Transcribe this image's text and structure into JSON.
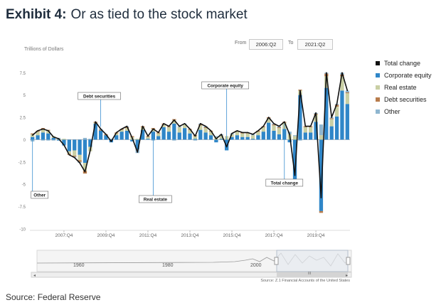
{
  "header": {
    "exhibit": "Exhibit 4:",
    "subtitle": "Or as tied to the stock market"
  },
  "controls": {
    "from_label": "From",
    "from_value": "2006:Q2",
    "to_label": "To",
    "to_value": "2021:Q2"
  },
  "navigator": {
    "labels": [
      "1960",
      "1980",
      "2000"
    ],
    "scroll_label": "III",
    "source": "Source: Z.1 Financial Accounts of the United States"
  },
  "source": "Source: Federal Reserve",
  "colors": {
    "total": "#111111",
    "equity": "#2f86c8",
    "real_estate": "#c9cfa4",
    "debt": "#b87c4c",
    "other": "#8fb6d0",
    "annotation": "#3a8fd0"
  },
  "chart_data": {
    "type": "bar",
    "ylabel": "Trillions of Dollars",
    "ylim": [
      -10,
      8
    ],
    "yticks": [
      "7.5",
      "5",
      "2.5",
      "0",
      "-2.5",
      "-5",
      "-7.5",
      "-10"
    ],
    "ytick_values": [
      7.5,
      5,
      2.5,
      0,
      -2.5,
      -5,
      -7.5,
      -10
    ],
    "xtick_labels": [
      "2007:Q4",
      "2009:Q4",
      "2011:Q4",
      "2013:Q4",
      "2015:Q4",
      "2017:Q4",
      "2019:Q4"
    ],
    "xtick_index": [
      6,
      14,
      22,
      30,
      38,
      46,
      54
    ],
    "categories": [
      "2006:Q2",
      "2006:Q3",
      "2006:Q4",
      "2007:Q1",
      "2007:Q2",
      "2007:Q3",
      "2007:Q4",
      "2008:Q1",
      "2008:Q2",
      "2008:Q3",
      "2008:Q4",
      "2009:Q1",
      "2009:Q2",
      "2009:Q3",
      "2009:Q4",
      "2010:Q1",
      "2010:Q2",
      "2010:Q3",
      "2010:Q4",
      "2011:Q1",
      "2011:Q2",
      "2011:Q3",
      "2011:Q4",
      "2012:Q1",
      "2012:Q2",
      "2012:Q3",
      "2012:Q4",
      "2013:Q1",
      "2013:Q2",
      "2013:Q3",
      "2013:Q4",
      "2014:Q1",
      "2014:Q2",
      "2014:Q3",
      "2014:Q4",
      "2015:Q1",
      "2015:Q2",
      "2015:Q3",
      "2015:Q4",
      "2016:Q1",
      "2016:Q2",
      "2016:Q3",
      "2016:Q4",
      "2017:Q1",
      "2017:Q2",
      "2017:Q3",
      "2017:Q4",
      "2018:Q1",
      "2018:Q2",
      "2018:Q3",
      "2018:Q4",
      "2019:Q1",
      "2019:Q2",
      "2019:Q3",
      "2019:Q4",
      "2020:Q1",
      "2020:Q2",
      "2020:Q3",
      "2020:Q4",
      "2021:Q1",
      "2021:Q2"
    ],
    "series": [
      {
        "name": "Total change",
        "values": [
          0.5,
          1.0,
          1.2,
          1.0,
          0.3,
          0.1,
          -0.6,
          -1.7,
          -2.0,
          -2.6,
          -3.6,
          -1.2,
          2.0,
          1.2,
          0.6,
          -0.2,
          0.8,
          1.2,
          1.5,
          0.2,
          -1.4,
          1.5,
          0.4,
          1.2,
          0.8,
          1.8,
          1.5,
          2.2,
          1.5,
          1.8,
          1.2,
          0.4,
          1.8,
          1.5,
          1.0,
          0.1,
          0.6,
          -0.8,
          0.7,
          1.0,
          0.8,
          0.8,
          0.6,
          1.0,
          1.5,
          2.5,
          1.8,
          1.5,
          2.0,
          0.6,
          -4.0,
          5.5,
          1.5,
          1.5,
          3.0,
          -6.5,
          7.5,
          2.5,
          4.0,
          7.5,
          5.5
        ]
      },
      {
        "name": "Corporate equity",
        "values": [
          0.3,
          0.5,
          0.8,
          0.7,
          0.2,
          -0.1,
          -0.6,
          -1.3,
          -1.2,
          -1.7,
          -2.6,
          -0.8,
          1.8,
          1.0,
          0.5,
          -0.3,
          0.5,
          0.9,
          1.0,
          -0.2,
          -1.1,
          1.1,
          0.1,
          0.9,
          0.4,
          1.4,
          0.9,
          1.8,
          0.8,
          1.3,
          0.7,
          0.1,
          1.1,
          0.8,
          0.5,
          -0.3,
          0.1,
          -1.2,
          0.3,
          0.5,
          0.3,
          0.3,
          0.1,
          0.5,
          0.9,
          1.9,
          1.0,
          0.6,
          1.2,
          -0.3,
          -4.5,
          5.0,
          0.8,
          0.8,
          2.0,
          -8.0,
          5.8,
          1.5,
          2.6,
          5.5,
          4.0
        ]
      },
      {
        "name": "Real estate",
        "values": [
          0.3,
          0.4,
          0.4,
          0.3,
          0.2,
          0.1,
          0.1,
          -0.3,
          -0.6,
          -0.6,
          -0.9,
          -0.5,
          0.1,
          0.0,
          0.0,
          0.0,
          0.2,
          0.2,
          0.3,
          0.3,
          0.1,
          0.3,
          0.2,
          0.3,
          0.3,
          0.3,
          0.5,
          0.4,
          0.6,
          0.4,
          0.4,
          0.3,
          0.5,
          0.5,
          0.4,
          0.3,
          0.4,
          0.4,
          0.3,
          0.4,
          0.4,
          0.4,
          0.4,
          0.4,
          0.5,
          0.5,
          0.6,
          0.7,
          0.7,
          0.6,
          0.4,
          0.5,
          0.6,
          0.6,
          0.8,
          0.5,
          1.3,
          0.8,
          1.1,
          1.6,
          1.2
        ]
      },
      {
        "name": "Debt securities",
        "values": [
          0.1,
          0.1,
          0.1,
          0.1,
          0.0,
          0.0,
          0.0,
          -0.1,
          -0.1,
          -0.2,
          -0.3,
          0.0,
          0.1,
          0.1,
          0.1,
          0.0,
          0.1,
          0.1,
          0.1,
          0.1,
          0.0,
          0.1,
          0.1,
          0.1,
          0.1,
          0.1,
          0.1,
          0.1,
          0.0,
          0.0,
          0.1,
          0.1,
          0.1,
          0.1,
          0.1,
          0.0,
          0.0,
          0.0,
          0.0,
          0.1,
          0.1,
          0.1,
          0.0,
          0.1,
          0.1,
          0.1,
          0.1,
          0.1,
          0.1,
          0.0,
          0.0,
          0.1,
          0.1,
          0.1,
          0.1,
          -0.2,
          0.3,
          0.1,
          0.2,
          0.2,
          0.1
        ]
      },
      {
        "name": "Other",
        "values": [
          -0.2,
          0.0,
          -0.1,
          -0.1,
          -0.1,
          0.1,
          -0.1,
          0.0,
          -0.1,
          -0.1,
          0.2,
          0.1,
          0.0,
          0.1,
          0.0,
          0.1,
          0.0,
          0.0,
          0.1,
          0.0,
          -0.4,
          0.0,
          0.0,
          -0.1,
          0.0,
          0.0,
          0.0,
          -0.1,
          0.1,
          0.1,
          0.0,
          -0.1,
          0.1,
          0.1,
          0.0,
          0.1,
          0.1,
          0.0,
          0.1,
          0.0,
          0.0,
          0.0,
          0.1,
          0.0,
          0.0,
          0.0,
          0.1,
          0.1,
          0.0,
          0.3,
          0.1,
          -0.1,
          0.0,
          0.0,
          0.1,
          1.2,
          0.1,
          0.1,
          0.1,
          0.2,
          0.2
        ]
      }
    ],
    "annotations": [
      {
        "text": "Debt securities",
        "index": 13
      },
      {
        "text": "Corporate equity",
        "index": 37
      },
      {
        "text": "Other",
        "index": 0
      },
      {
        "text": "Real estate",
        "index": 23
      },
      {
        "text": "Total change",
        "index": 48
      }
    ],
    "legend_position": "right",
    "grid": false
  }
}
